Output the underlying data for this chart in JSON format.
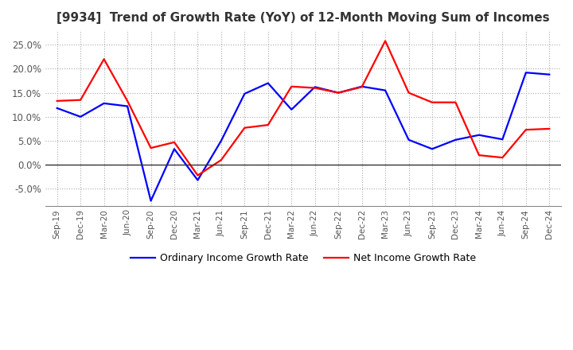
{
  "title": "[9934]  Trend of Growth Rate (YoY) of 12-Month Moving Sum of Incomes",
  "title_fontsize": 11,
  "ylim": [
    -0.085,
    0.28
  ],
  "yticks": [
    -0.05,
    0.0,
    0.05,
    0.1,
    0.15,
    0.2,
    0.25
  ],
  "ytick_labels": [
    "-5.0%",
    "0.0%",
    "5.0%",
    "10.0%",
    "15.0%",
    "20.0%",
    "25.0%"
  ],
  "background_color": "#ffffff",
  "grid_color": "#aaaaaa",
  "x_labels": [
    "Sep-19",
    "Dec-19",
    "Mar-20",
    "Jun-20",
    "Sep-20",
    "Dec-20",
    "Mar-21",
    "Jun-21",
    "Sep-21",
    "Dec-21",
    "Mar-22",
    "Jun-22",
    "Sep-22",
    "Dec-22",
    "Mar-23",
    "Jun-23",
    "Sep-23",
    "Dec-23",
    "Mar-24",
    "Jun-24",
    "Sep-24",
    "Dec-24"
  ],
  "ordinary_income": [
    0.118,
    0.1,
    0.128,
    0.122,
    -0.075,
    0.033,
    -0.032,
    0.05,
    0.148,
    0.17,
    0.115,
    0.162,
    0.15,
    0.163,
    0.155,
    0.052,
    0.033,
    0.052,
    0.062,
    0.053,
    0.192,
    0.188
  ],
  "net_income": [
    0.133,
    0.135,
    0.22,
    0.133,
    0.035,
    0.047,
    -0.022,
    0.01,
    0.077,
    0.083,
    0.163,
    0.16,
    0.15,
    0.162,
    0.258,
    0.15,
    0.13,
    0.13,
    0.02,
    0.015,
    0.073,
    0.075
  ],
  "ordinary_color": "#0000ff",
  "net_color": "#ff0000",
  "line_width": 1.6,
  "legend_ordinary": "Ordinary Income Growth Rate",
  "legend_net": "Net Income Growth Rate"
}
